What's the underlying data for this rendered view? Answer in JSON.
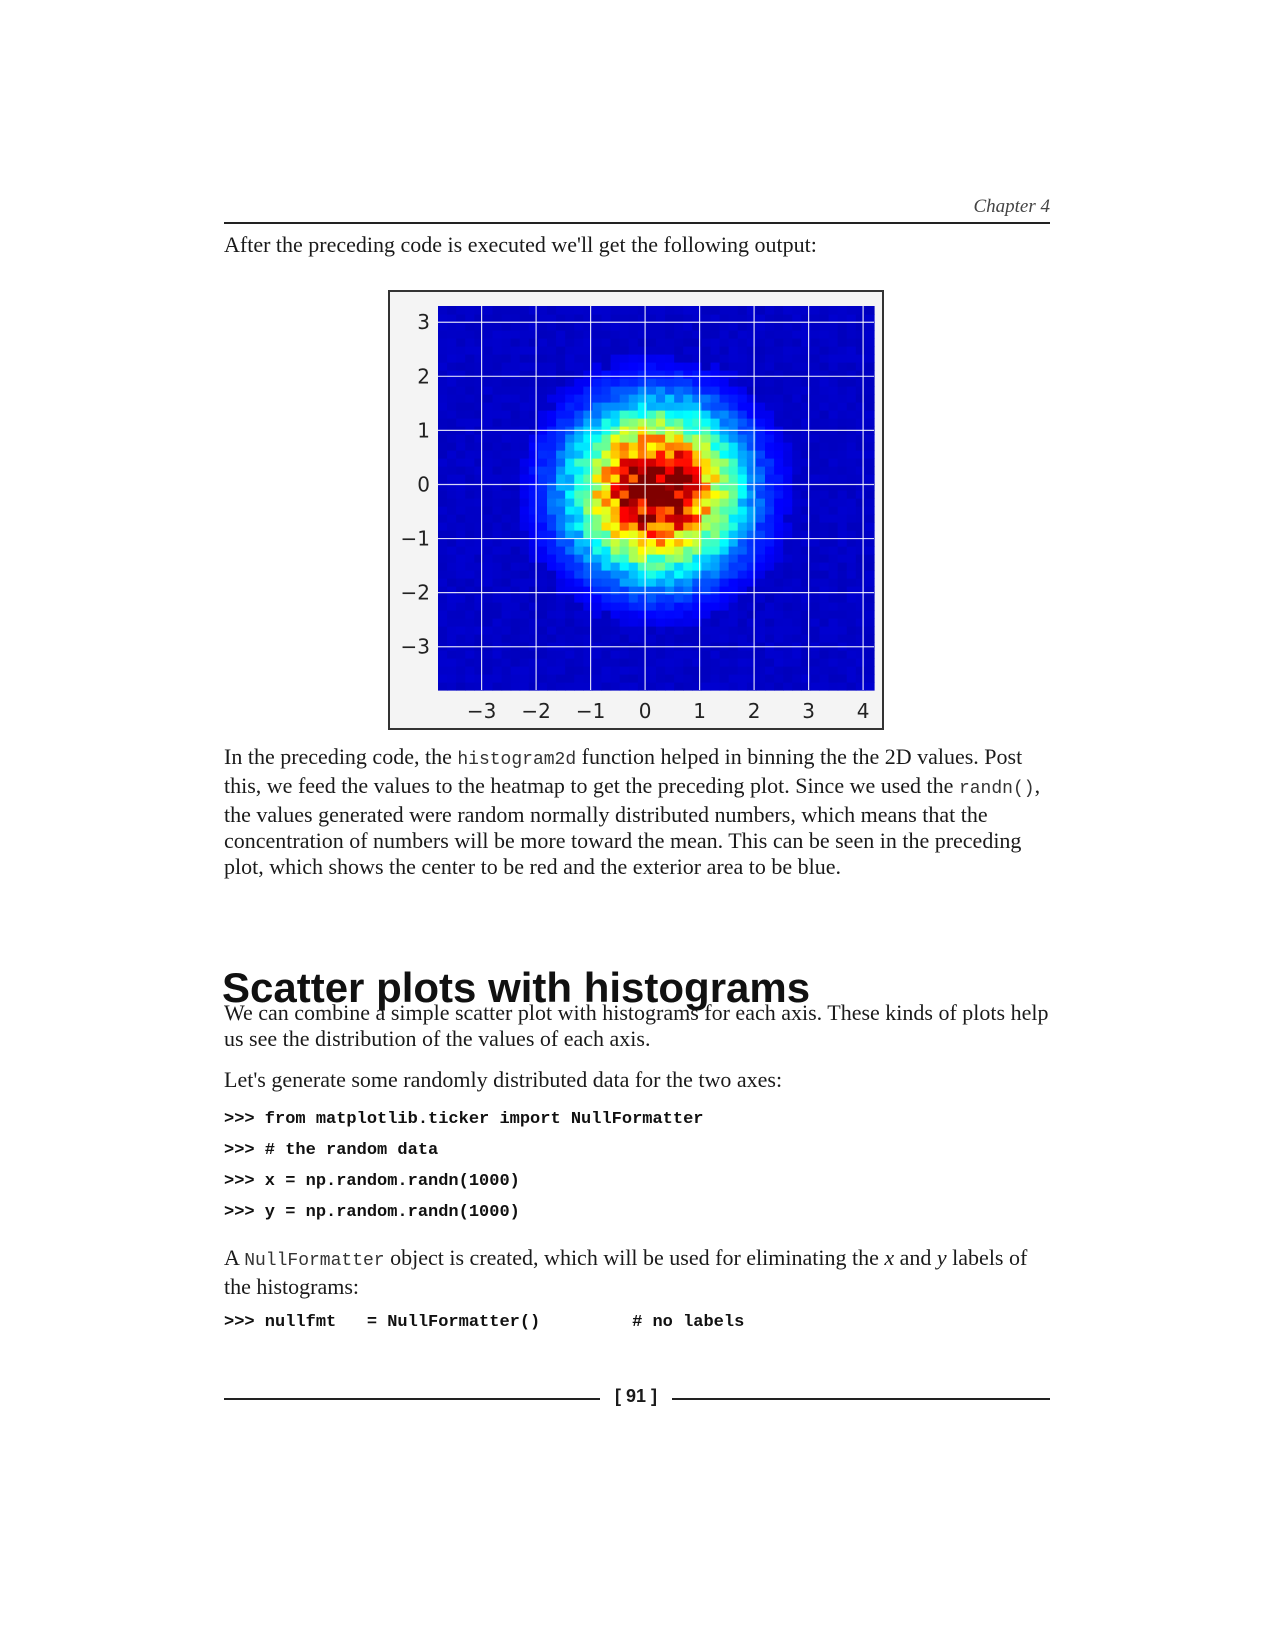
{
  "header": {
    "chapter": "Chapter 4"
  },
  "intro": "After the preceding code is executed we'll get the following output:",
  "chart_data": {
    "type": "heatmap",
    "title": "",
    "xlabel": "",
    "ylabel": "",
    "xlim": [
      -3.8,
      4.2
    ],
    "ylim": [
      -3.8,
      3.3
    ],
    "x_ticks": [
      "−3",
      "−2",
      "−1",
      "0",
      "1",
      "2",
      "3",
      "4"
    ],
    "y_ticks": [
      "3",
      "2",
      "1",
      "0",
      "−1",
      "−2",
      "−3"
    ],
    "x_tick_values": [
      -3,
      -2,
      -1,
      0,
      1,
      2,
      3,
      4
    ],
    "y_tick_values": [
      3,
      2,
      1,
      0,
      -1,
      -2,
      -3
    ],
    "grid": true,
    "colormap": "jet",
    "peak_location": [
      0.2,
      -0.1
    ],
    "distribution": "2D normal, mean near (0, 0), std approx 1",
    "colors": {
      "low": "#00008f",
      "high": "#800000"
    }
  },
  "para1": {
    "t1": "In the preceding code, the ",
    "code1": "histogram2d",
    "t2": " function helped in binning the the 2D values. Post this, we feed the values to the heatmap to get the preceding plot. Since we used the ",
    "code2": "randn()",
    "t3": ", the values generated were random normally distributed numbers, which means that the concentration of numbers will be more toward the mean. This can be seen in the preceding plot, which shows the center to be red and the exterior area to be blue."
  },
  "heading": "Scatter plots with histograms",
  "para2": "We can combine a simple scatter plot with histograms for each axis. These kinds of plots help us see the distribution of the values of each axis.",
  "para3": "Let's generate some randomly distributed data for the two axes:",
  "code_block1": [
    ">>> from matplotlib.ticker import NullFormatter",
    ">>> # the random data",
    ">>> x = np.random.randn(1000)",
    ">>> y = np.random.randn(1000)"
  ],
  "para4": {
    "t1": "A ",
    "code": "NullFormatter",
    "t2": " object is created, which will be used for eliminating the ",
    "x": "x",
    "t3": " and ",
    "y": "y",
    "t4": " labels of the histograms:"
  },
  "code_block2": ">>> nullfmt   = NullFormatter()         # no labels",
  "page_number": "[ 91 ]"
}
